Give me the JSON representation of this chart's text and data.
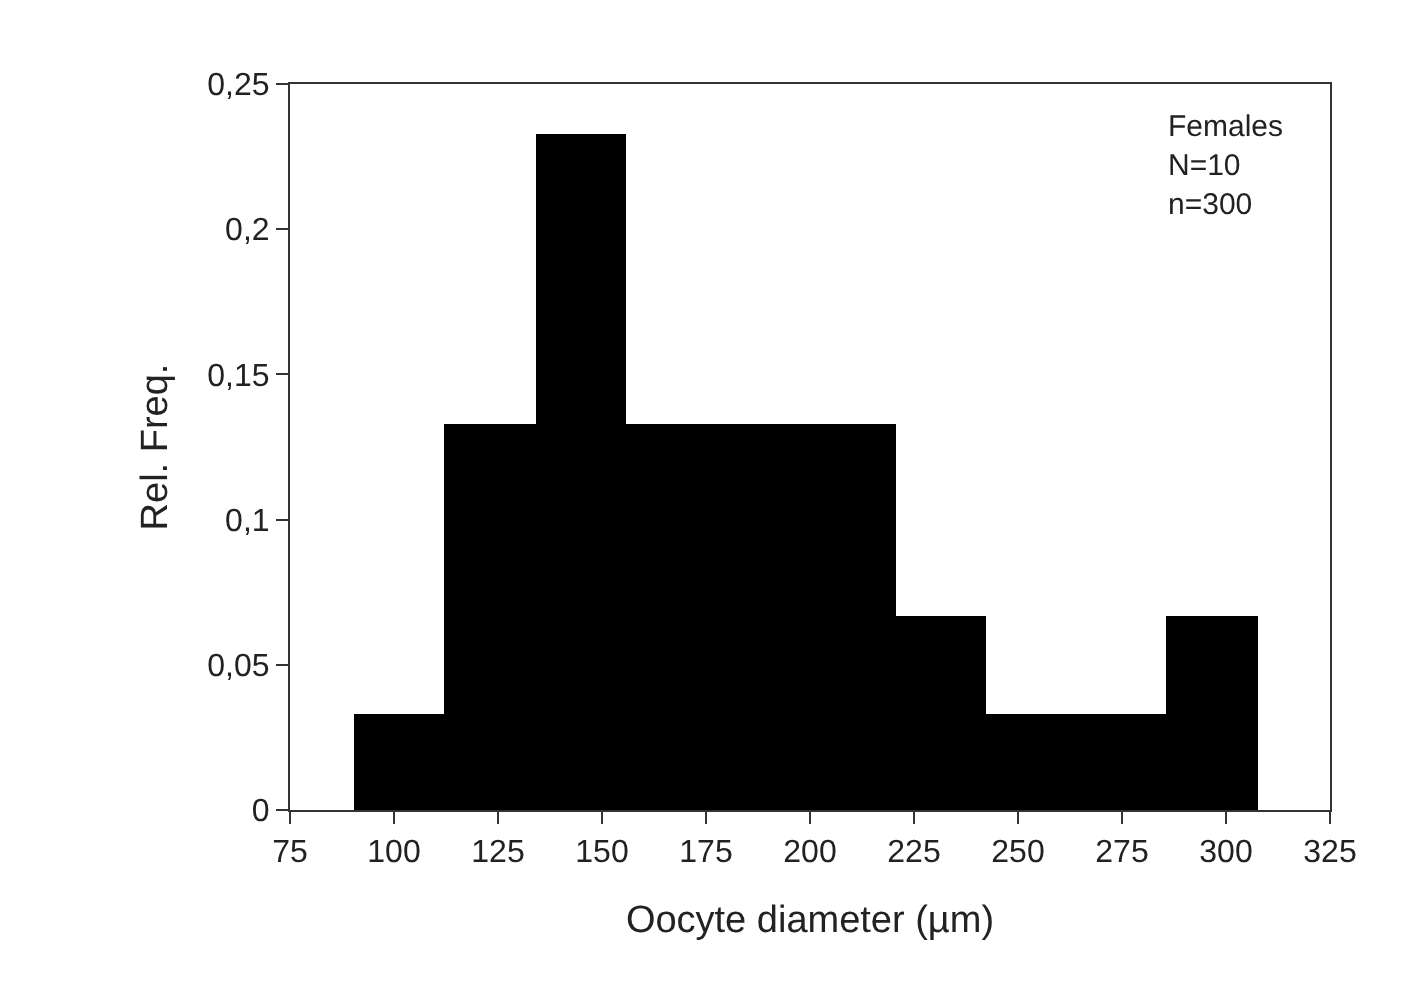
{
  "chart_data": {
    "type": "histogram",
    "xlabel": "Oocyte diameter (µm)",
    "ylabel": "Rel. Freq.",
    "bins": [
      90.5,
      112.2,
      133.9,
      155.6,
      177.3,
      199.0,
      220.7,
      242.4,
      264.1,
      285.8,
      307.5
    ],
    "values": [
      0.033,
      0.133,
      0.233,
      0.133,
      0.133,
      0.133,
      0.067,
      0.033,
      0.033,
      0.067
    ],
    "color": "#000000",
    "xlim": [
      75,
      325
    ],
    "xticks": [
      75,
      100,
      125,
      150,
      175,
      200,
      225,
      250,
      275,
      300,
      325
    ],
    "ylim": [
      0,
      0.25
    ],
    "yticks": [
      {
        "value": 0,
        "label": "0"
      },
      {
        "value": 0.05,
        "label": "0,05"
      },
      {
        "value": 0.1,
        "label": "0,1"
      },
      {
        "value": 0.15,
        "label": "0,15"
      },
      {
        "value": 0.2,
        "label": "0,2"
      },
      {
        "value": 0.25,
        "label": "0,25"
      }
    ],
    "annotations": [
      "Females\nN=10\nn=300"
    ]
  }
}
